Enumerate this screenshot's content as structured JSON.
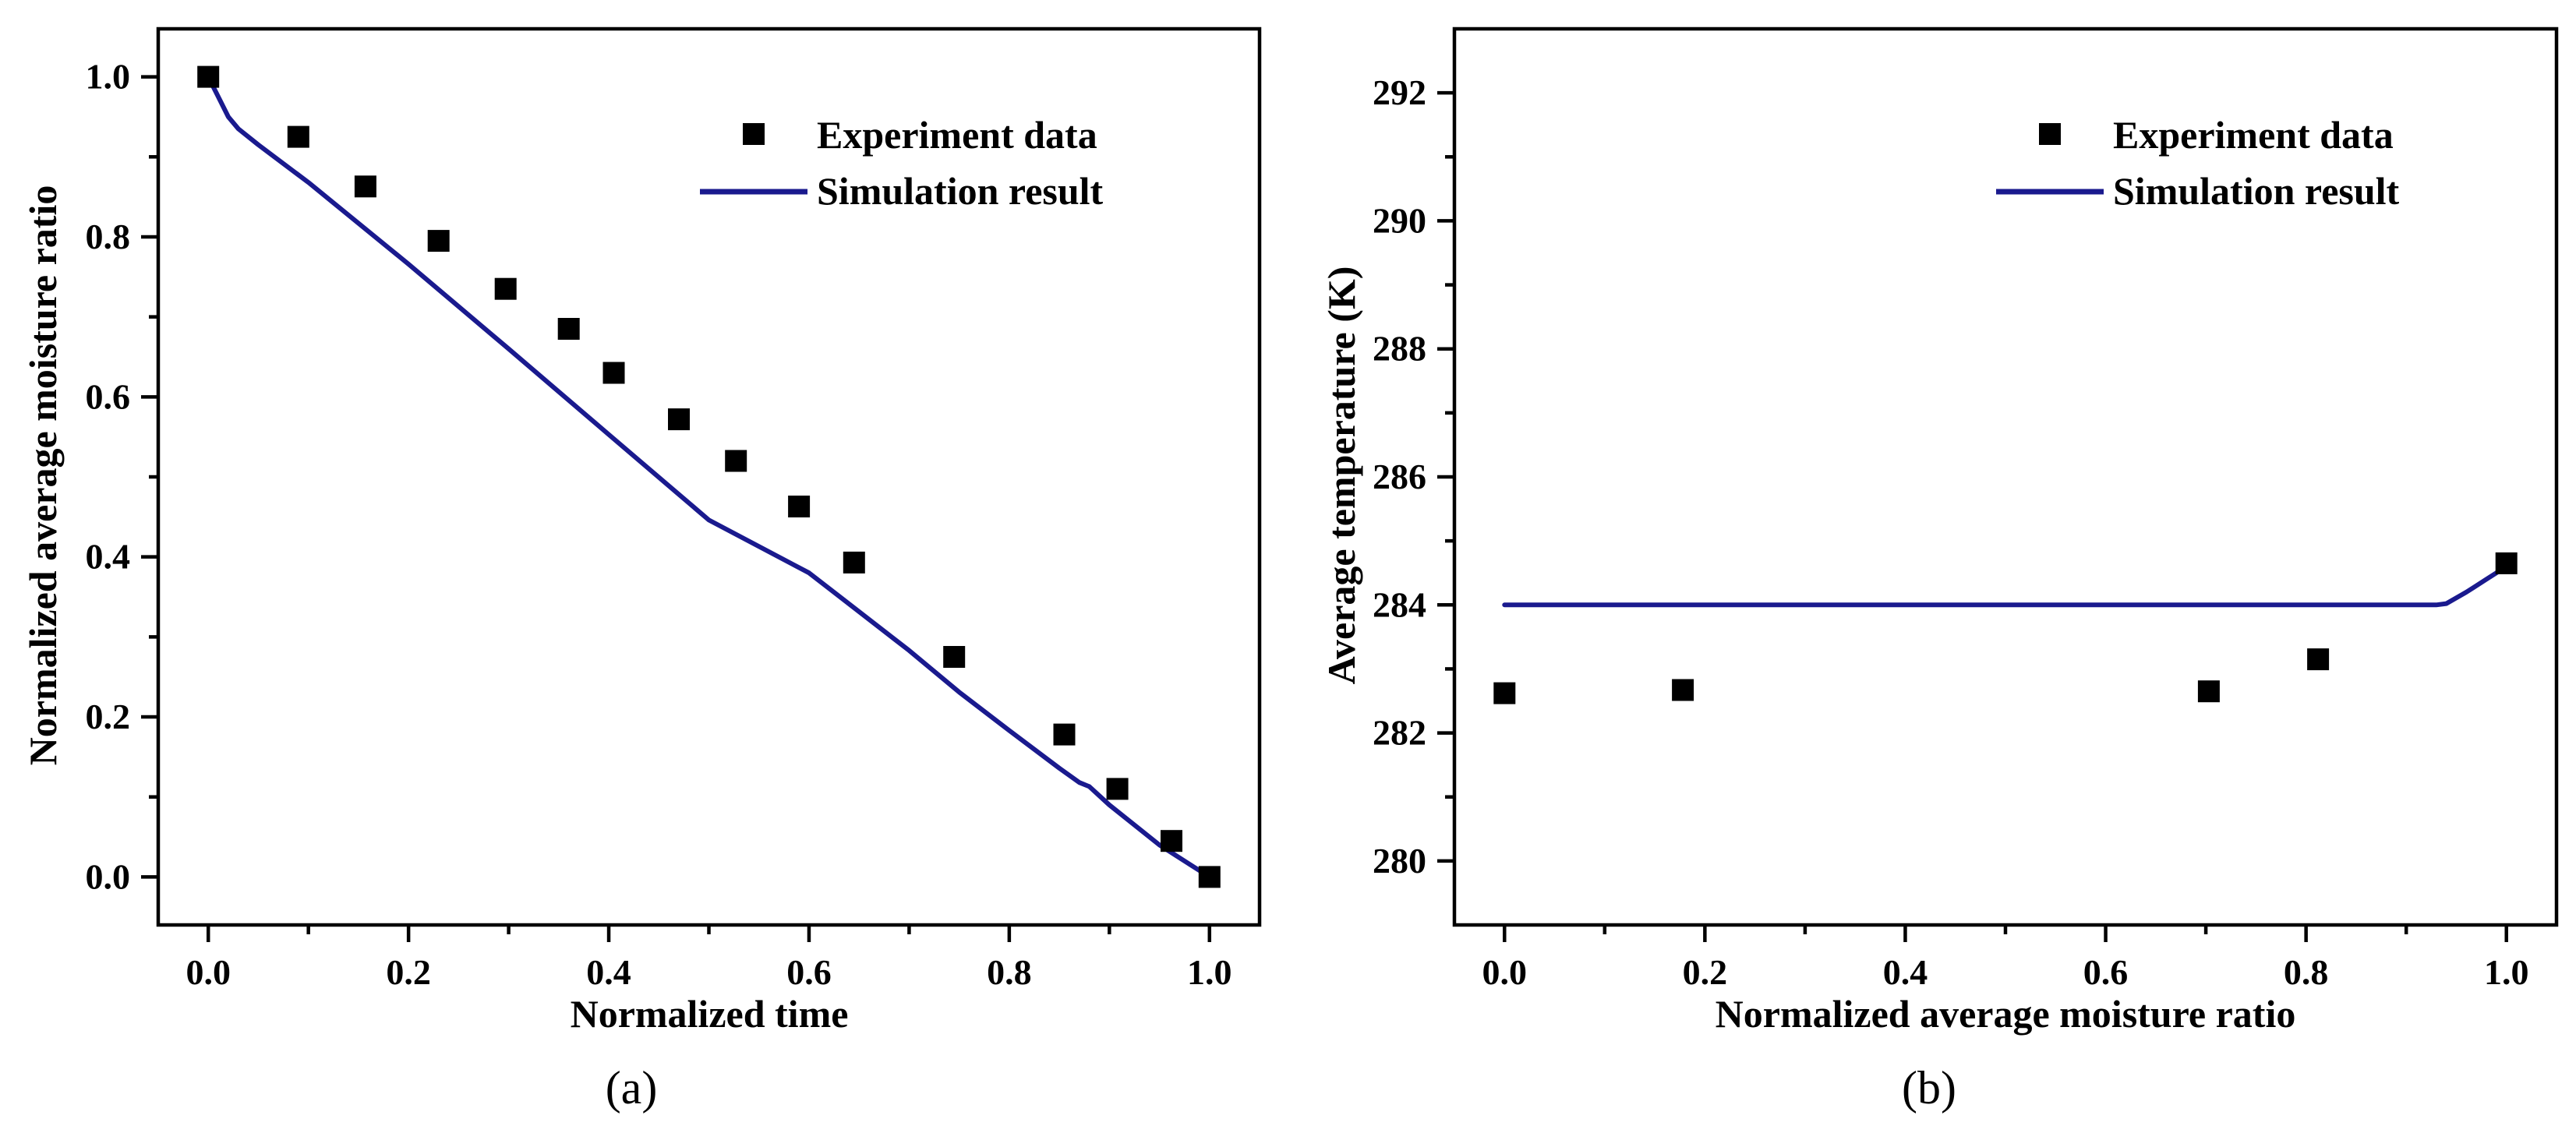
{
  "chart_data": [
    {
      "type": "scatter+line",
      "panel_label": "(a)",
      "xlabel": "Normalized time",
      "ylabel": "Normalized average moisture ratio",
      "xlim": [
        -0.05,
        1.05
      ],
      "ylim": [
        -0.06,
        1.06
      ],
      "xticks": [
        0.0,
        0.2,
        0.4,
        0.6,
        0.8,
        1.0
      ],
      "xtick_labels": [
        "0.0",
        "0.2",
        "0.4",
        "0.6",
        "0.8",
        "1.0"
      ],
      "yticks": [
        0.0,
        0.2,
        0.4,
        0.6,
        0.8,
        1.0
      ],
      "ytick_labels": [
        "0.0",
        "0.2",
        "0.4",
        "0.6",
        "0.8",
        "1.0"
      ],
      "legend_position": "top-right",
      "series": [
        {
          "name": "Experiment data",
          "kind": "scatter",
          "marker": "square",
          "color": "#000000",
          "x": [
            0.0,
            0.09,
            0.157,
            0.23,
            0.297,
            0.36,
            0.405,
            0.47,
            0.527,
            0.59,
            0.645,
            0.745,
            0.855,
            0.908,
            0.962,
            1.0
          ],
          "y": [
            1.0,
            0.925,
            0.863,
            0.795,
            0.735,
            0.685,
            0.63,
            0.572,
            0.52,
            0.463,
            0.393,
            0.275,
            0.178,
            0.11,
            0.045,
            0.0
          ]
        },
        {
          "name": "Simulation result",
          "kind": "line",
          "color": "#1a1a8e",
          "x": [
            0.0,
            0.01,
            0.02,
            0.03,
            0.05,
            0.1,
            0.2,
            0.3,
            0.4,
            0.5,
            0.6,
            0.7,
            0.75,
            0.8,
            0.85,
            0.87,
            0.88,
            0.9,
            0.95,
            1.0
          ],
          "y": [
            1.0,
            0.975,
            0.95,
            0.935,
            0.915,
            0.868,
            0.766,
            0.66,
            0.553,
            0.446,
            0.38,
            0.283,
            0.231,
            0.183,
            0.136,
            0.118,
            0.113,
            0.09,
            0.04,
            0.0
          ]
        }
      ]
    },
    {
      "type": "scatter+line",
      "panel_label": "(b)",
      "xlabel": "Normalized average moisture ratio",
      "ylabel": "Average temperature (K)",
      "xlim": [
        -0.05,
        1.05
      ],
      "ylim": [
        279.0,
        293.0
      ],
      "xticks": [
        0.0,
        0.2,
        0.4,
        0.6,
        0.8,
        1.0
      ],
      "xtick_labels": [
        "0.0",
        "0.2",
        "0.4",
        "0.6",
        "0.8",
        "1.0"
      ],
      "yticks": [
        280,
        282,
        284,
        286,
        288,
        290,
        292
      ],
      "ytick_labels": [
        "280",
        "282",
        "284",
        "286",
        "288",
        "290",
        "292"
      ],
      "legend_position": "top-right",
      "series": [
        {
          "name": "Experiment data",
          "kind": "scatter",
          "marker": "square",
          "color": "#000000",
          "x": [
            0.0,
            0.178,
            0.703,
            0.812,
            1.0
          ],
          "y": [
            282.62,
            282.67,
            282.65,
            283.15,
            284.65
          ]
        },
        {
          "name": "Simulation result",
          "kind": "line",
          "color": "#1a1a8e",
          "x": [
            0.0,
            0.3,
            0.6,
            0.93,
            0.94,
            0.96,
            0.98,
            1.0
          ],
          "y": [
            284.0,
            284.0,
            284.0,
            284.0,
            284.02,
            284.2,
            284.4,
            284.6
          ]
        }
      ]
    }
  ]
}
